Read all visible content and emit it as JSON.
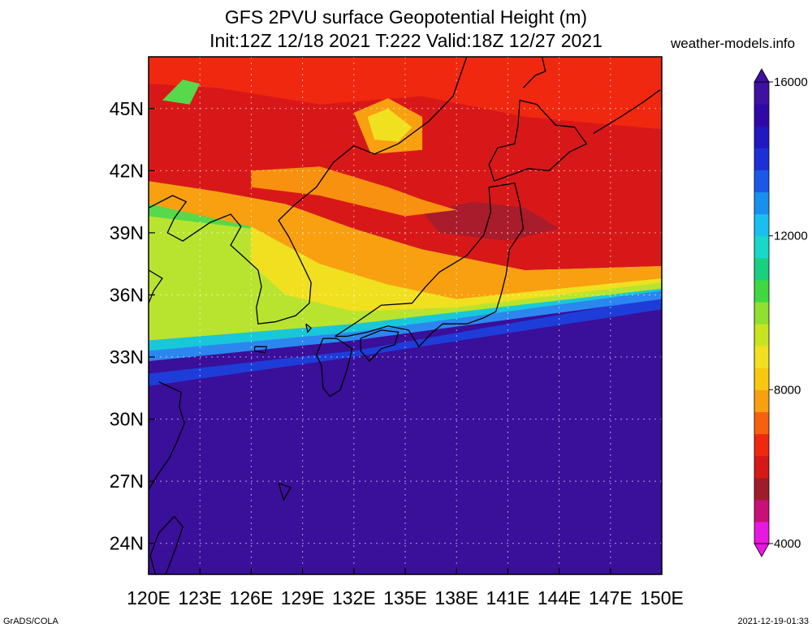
{
  "title_line1": "GFS 2PVU surface Geopotential Height (m)",
  "title_line2": "Init:12Z 12/18 2021 T:222 Valid:18Z 12/27 2021",
  "site_credit": "weather-models.info",
  "footer_left": "GrADS/COLA",
  "footer_right": "2021-12-19-01:33",
  "map": {
    "lon_range": [
      120,
      150
    ],
    "lat_range": [
      22.5,
      47.5
    ],
    "lon_ticks": [
      {
        "value": 120,
        "label": "120E"
      },
      {
        "value": 123,
        "label": "123E"
      },
      {
        "value": 126,
        "label": "126E"
      },
      {
        "value": 129,
        "label": "129E"
      },
      {
        "value": 132,
        "label": "132E"
      },
      {
        "value": 135,
        "label": "135E"
      },
      {
        "value": 138,
        "label": "138E"
      },
      {
        "value": 141,
        "label": "141E"
      },
      {
        "value": 144,
        "label": "144E"
      },
      {
        "value": 147,
        "label": "147E"
      },
      {
        "value": 150,
        "label": "150E"
      }
    ],
    "lat_ticks": [
      {
        "value": 24,
        "label": "24N"
      },
      {
        "value": 27,
        "label": "27N"
      },
      {
        "value": 30,
        "label": "30N"
      },
      {
        "value": 33,
        "label": "33N"
      },
      {
        "value": 36,
        "label": "36N"
      },
      {
        "value": 39,
        "label": "39N"
      },
      {
        "value": 42,
        "label": "42N"
      },
      {
        "value": 45,
        "label": "45N"
      }
    ],
    "regions": [
      {
        "name": "tropical-high",
        "color": "#3a0f9a",
        "pts": [
          [
            120,
            22.5
          ],
          [
            150,
            22.5
          ],
          [
            150,
            35
          ],
          [
            120,
            32.5
          ]
        ]
      },
      {
        "name": "blue-zone",
        "color": "#1e3cd8",
        "pts": [
          [
            120,
            32.2
          ],
          [
            132,
            33.3
          ],
          [
            150,
            35.9
          ],
          [
            150,
            35.3
          ],
          [
            132,
            33
          ],
          [
            120,
            31.6
          ]
        ]
      },
      {
        "name": "blue-band",
        "color": "#2c86f0",
        "pts": [
          [
            120,
            33.6
          ],
          [
            132,
            34.3
          ],
          [
            150,
            36.4
          ],
          [
            150,
            35.8
          ],
          [
            132,
            33.8
          ],
          [
            120,
            32.8
          ]
        ]
      },
      {
        "name": "cyan-band",
        "color": "#18c8d8",
        "pts": [
          [
            120,
            33.8
          ],
          [
            132,
            34.6
          ],
          [
            150,
            36.5
          ],
          [
            150,
            36.2
          ],
          [
            132,
            34.2
          ],
          [
            120,
            33.3
          ]
        ]
      },
      {
        "name": "green-zone",
        "color": "#58d84a",
        "pts": [
          [
            120,
            40.8
          ],
          [
            126,
            40
          ],
          [
            132,
            38
          ],
          [
            138,
            36.6
          ],
          [
            150,
            36.8
          ],
          [
            150,
            36.3
          ],
          [
            132,
            34.6
          ],
          [
            120,
            33.8
          ]
        ]
      },
      {
        "name": "yellow-green-zone",
        "color": "#b8e430",
        "pts": [
          [
            120,
            39.8
          ],
          [
            126,
            39.2
          ],
          [
            130,
            37.5
          ],
          [
            134,
            36
          ],
          [
            138,
            35.4
          ],
          [
            150,
            36.7
          ],
          [
            150,
            36.3
          ],
          [
            132,
            34.6
          ],
          [
            120,
            33.8
          ]
        ]
      },
      {
        "name": "yellow-zone",
        "color": "#f0e020",
        "pts": [
          [
            126,
            39.6
          ],
          [
            130,
            38.8
          ],
          [
            134,
            38.2
          ],
          [
            138,
            37.4
          ],
          [
            142,
            37
          ],
          [
            150,
            37.2
          ],
          [
            150,
            36.6
          ],
          [
            138,
            35.4
          ],
          [
            132,
            35.2
          ],
          [
            128,
            36
          ],
          [
            126,
            37.5
          ]
        ]
      },
      {
        "name": "orange-zone",
        "color": "#f8a010",
        "pts": [
          [
            120,
            41.5
          ],
          [
            124,
            41
          ],
          [
            128,
            40.4
          ],
          [
            132,
            39.2
          ],
          [
            136,
            38.2
          ],
          [
            142,
            37.2
          ],
          [
            150,
            37.4
          ],
          [
            150,
            36.8
          ],
          [
            138,
            35.8
          ],
          [
            134,
            36.5
          ],
          [
            130,
            37.5
          ],
          [
            126,
            39.3
          ],
          [
            120,
            40.4
          ]
        ]
      },
      {
        "name": "deep-red-zone",
        "color": "#d81818",
        "pts": [
          [
            120,
            47.5
          ],
          [
            150,
            47.5
          ],
          [
            150,
            37.4
          ],
          [
            142,
            37.2
          ],
          [
            136,
            38.2
          ],
          [
            132,
            39.2
          ],
          [
            128,
            40.4
          ],
          [
            124,
            41
          ],
          [
            120,
            41.5
          ]
        ]
      },
      {
        "name": "red-zone",
        "color": "#f02810",
        "pts": [
          [
            120,
            47.5
          ],
          [
            150,
            47.5
          ],
          [
            150,
            44
          ],
          [
            142,
            44.6
          ],
          [
            136,
            45.6
          ],
          [
            130,
            45.2
          ],
          [
            124,
            46
          ],
          [
            120,
            46.2
          ]
        ]
      },
      {
        "name": "dark-trough",
        "color": "#a81c2c",
        "pts": [
          [
            136,
            40
          ],
          [
            139,
            40.5
          ],
          [
            142,
            40.2
          ],
          [
            144,
            39.2
          ],
          [
            141,
            38.6
          ],
          [
            137,
            39
          ]
        ]
      },
      {
        "name": "orange-ridge",
        "color": "#f89010",
        "pts": [
          [
            126,
            42
          ],
          [
            130,
            42.2
          ],
          [
            134,
            41.2
          ],
          [
            136,
            40.6
          ],
          [
            138,
            40.1
          ],
          [
            135,
            39.8
          ],
          [
            130,
            40.8
          ],
          [
            126,
            41.2
          ]
        ]
      },
      {
        "name": "orange-blob",
        "color": "#f8a010",
        "pts": [
          [
            132,
            44.8
          ],
          [
            134,
            45.5
          ],
          [
            136,
            44.6
          ],
          [
            136,
            43
          ],
          [
            133,
            42.8
          ]
        ]
      },
      {
        "name": "yellow-blob",
        "color": "#f0e020",
        "pts": [
          [
            132.8,
            44.6
          ],
          [
            134,
            45
          ],
          [
            135.4,
            44.1
          ],
          [
            134.6,
            43.4
          ],
          [
            133.2,
            43.5
          ]
        ]
      },
      {
        "name": "green-blob",
        "color": "#58d84a",
        "pts": [
          [
            120.8,
            45.4
          ],
          [
            122,
            46.4
          ],
          [
            123,
            46.2
          ],
          [
            122.4,
            45.2
          ]
        ]
      }
    ],
    "coastlines": [
      {
        "name": "china-korea-coast",
        "pts": [
          [
            120,
            40.2
          ],
          [
            121.4,
            40.8
          ],
          [
            122.2,
            40.5
          ],
          [
            121.5,
            39.7
          ],
          [
            121.1,
            39
          ],
          [
            122,
            38.6
          ],
          [
            123.6,
            39.5
          ],
          [
            124.8,
            39.9
          ],
          [
            125.4,
            39.3
          ],
          [
            124.8,
            38.4
          ],
          [
            125.6,
            37.8
          ],
          [
            126.4,
            37.2
          ],
          [
            126.6,
            36.4
          ],
          [
            126.3,
            35.4
          ],
          [
            126.4,
            34.6
          ],
          [
            127.4,
            34.7
          ],
          [
            128.6,
            35
          ],
          [
            129.4,
            35.6
          ],
          [
            129.5,
            36.6
          ],
          [
            128.8,
            37.8
          ],
          [
            128.2,
            38.8
          ],
          [
            127.6,
            39.6
          ],
          [
            128.6,
            40.4
          ],
          [
            129.8,
            41.2
          ],
          [
            130.8,
            42.4
          ],
          [
            132,
            43.2
          ],
          [
            133.2,
            42.8
          ],
          [
            134.6,
            43.3
          ],
          [
            136.4,
            44.4
          ],
          [
            137.8,
            45.6
          ],
          [
            138.6,
            47.5
          ]
        ]
      },
      {
        "name": "china-east-coast",
        "pts": [
          [
            120,
            37.2
          ],
          [
            120.8,
            36.8
          ],
          [
            120.3,
            36.2
          ],
          [
            120,
            35.6
          ]
        ]
      },
      {
        "name": "china-south-coast",
        "pts": [
          [
            120.6,
            31.8
          ],
          [
            121.9,
            31.3
          ],
          [
            121.8,
            30.6
          ],
          [
            122.1,
            29.8
          ],
          [
            121.6,
            28.8
          ],
          [
            121.2,
            28.1
          ],
          [
            120.6,
            27.4
          ],
          [
            120,
            26.6
          ]
        ]
      },
      {
        "name": "taiwan",
        "pts": [
          [
            121.5,
            25.3
          ],
          [
            122,
            24.8
          ],
          [
            121.6,
            23.8
          ],
          [
            121,
            22.5
          ],
          [
            120.4,
            22.5
          ],
          [
            120.1,
            23.4
          ],
          [
            120.6,
            24.5
          ],
          [
            121.5,
            25.3
          ]
        ]
      },
      {
        "name": "kyushu",
        "pts": [
          [
            130.2,
            33.9
          ],
          [
            131,
            33.9
          ],
          [
            131.9,
            33.4
          ],
          [
            131.6,
            32.4
          ],
          [
            131.2,
            31.4
          ],
          [
            130.6,
            31.1
          ],
          [
            130.2,
            31.5
          ],
          [
            130.1,
            32.6
          ],
          [
            129.8,
            33.1
          ],
          [
            130.2,
            33.9
          ]
        ]
      },
      {
        "name": "shikoku",
        "pts": [
          [
            132.4,
            33.9
          ],
          [
            133.6,
            34.3
          ],
          [
            134.6,
            34.2
          ],
          [
            134.4,
            33.6
          ],
          [
            133.6,
            33.4
          ],
          [
            132.9,
            32.8
          ],
          [
            132.4,
            33.3
          ],
          [
            132.4,
            33.9
          ]
        ]
      },
      {
        "name": "honshu",
        "pts": [
          [
            130.9,
            34
          ],
          [
            132.2,
            34.7
          ],
          [
            133.6,
            35.5
          ],
          [
            135.4,
            35.6
          ],
          [
            136.2,
            36.4
          ],
          [
            137,
            37.1
          ],
          [
            138.6,
            37.9
          ],
          [
            139.6,
            38.9
          ],
          [
            140,
            40
          ],
          [
            139.9,
            41.2
          ],
          [
            141.4,
            41.4
          ],
          [
            141.7,
            40.4
          ],
          [
            141.9,
            39.2
          ],
          [
            141.1,
            38.2
          ],
          [
            140.9,
            37
          ],
          [
            140.6,
            36
          ],
          [
            140.3,
            35.2
          ],
          [
            139.6,
            34.9
          ],
          [
            138.6,
            34.6
          ],
          [
            137.2,
            34.6
          ],
          [
            136.6,
            34.2
          ],
          [
            135.8,
            33.5
          ],
          [
            135.2,
            34.3
          ],
          [
            134,
            34.5
          ],
          [
            132.8,
            34.2
          ],
          [
            131.6,
            34
          ],
          [
            130.9,
            34
          ]
        ]
      },
      {
        "name": "hokkaido",
        "pts": [
          [
            140.2,
            41.5
          ],
          [
            141.2,
            41.8
          ],
          [
            142.2,
            42.1
          ],
          [
            143.4,
            42
          ],
          [
            144.6,
            42.9
          ],
          [
            145.6,
            43.3
          ],
          [
            144.9,
            44.1
          ],
          [
            143.8,
            44.2
          ],
          [
            142.7,
            45.2
          ],
          [
            141.7,
            45.4
          ],
          [
            141.6,
            44.2
          ],
          [
            141.4,
            43.3
          ],
          [
            140.4,
            43.1
          ],
          [
            139.9,
            42.3
          ],
          [
            140.2,
            41.5
          ]
        ]
      },
      {
        "name": "sakhalin",
        "pts": [
          [
            141.9,
            46
          ],
          [
            142.6,
            46.6
          ],
          [
            143.2,
            46.8
          ],
          [
            143,
            47.5
          ]
        ]
      },
      {
        "name": "jeju",
        "pts": [
          [
            126.2,
            33.5
          ],
          [
            126.9,
            33.5
          ],
          [
            126.8,
            33.2
          ],
          [
            126.2,
            33.3
          ],
          [
            126.2,
            33.5
          ]
        ]
      },
      {
        "name": "okinawa",
        "pts": [
          [
            127.6,
            26.9
          ],
          [
            128.3,
            26.7
          ],
          [
            127.9,
            26.1
          ],
          [
            127.6,
            26.9
          ]
        ]
      },
      {
        "name": "tsushima",
        "pts": [
          [
            129.2,
            34.6
          ],
          [
            129.5,
            34.4
          ],
          [
            129.3,
            34.2
          ],
          [
            129.2,
            34.6
          ]
        ]
      },
      {
        "name": "kurils",
        "pts": [
          [
            146,
            43.8
          ],
          [
            147.6,
            44.6
          ],
          [
            148.9,
            45.3
          ],
          [
            149.9,
            45.9
          ]
        ]
      }
    ]
  },
  "colorbar": {
    "labels": [
      {
        "value": 16000,
        "label": "16000"
      },
      {
        "value": 12000,
        "label": "12000"
      },
      {
        "value": 8000,
        "label": "8000"
      },
      {
        "value": 4000,
        "label": "4000"
      }
    ],
    "range": [
      4000,
      16000
    ],
    "colors": [
      "#e818e0",
      "#c81078",
      "#a01c28",
      "#d81818",
      "#f02810",
      "#f86010",
      "#f8a010",
      "#f8c810",
      "#f0e020",
      "#c8e420",
      "#90e030",
      "#40d840",
      "#18d080",
      "#18d8c8",
      "#18c0f0",
      "#1890f0",
      "#1c58e8",
      "#1c30d8",
      "#2018c0",
      "#3008a8",
      "#4010a0"
    ]
  }
}
